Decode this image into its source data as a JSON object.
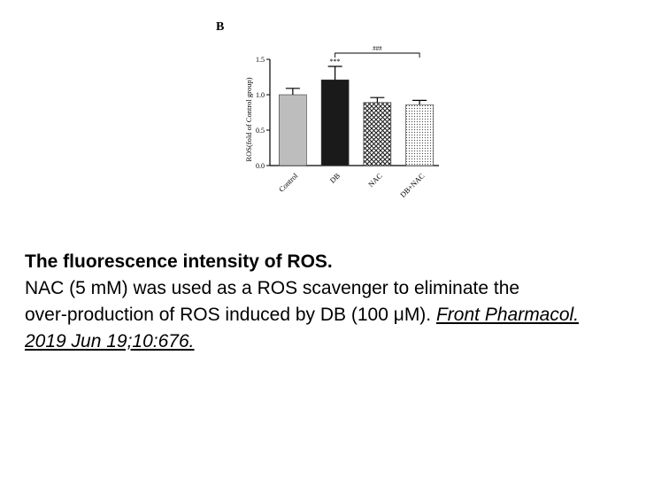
{
  "chart_data": {
    "type": "bar",
    "panel_label": "B",
    "categories": [
      "Control",
      "DB",
      "NAC",
      "DB+NAC"
    ],
    "values": [
      1.0,
      1.21,
      0.89,
      0.86
    ],
    "errors": [
      0.09,
      0.19,
      0.07,
      0.06
    ],
    "ylabel": "ROS(fold of Control group)",
    "ylim": [
      0.0,
      1.5
    ],
    "yticks": [
      "0.0",
      "0.5",
      "1.0",
      "1.5"
    ],
    "annotations": {
      "db_vs_control": "***",
      "db_vs_dbnac": "###"
    },
    "bar_styles": [
      {
        "fill": "#bdbdbd",
        "pattern": "solid"
      },
      {
        "fill": "#1a1a1a",
        "pattern": "solid"
      },
      {
        "fill": "#ffffff",
        "pattern": "crosshatch"
      },
      {
        "fill": "#ffffff",
        "pattern": "dots"
      }
    ],
    "grid": false
  },
  "caption": {
    "title": "The fluorescence intensity of ROS.",
    "line1": "NAC (5 mM) was used as a ROS scavenger to eliminate the",
    "line2_text": "over-production of ROS induced by DB (100 μM). ",
    "citation_part1": "Front Pharmacol.",
    "citation_part2": "2019 Jun 19;10:676."
  }
}
